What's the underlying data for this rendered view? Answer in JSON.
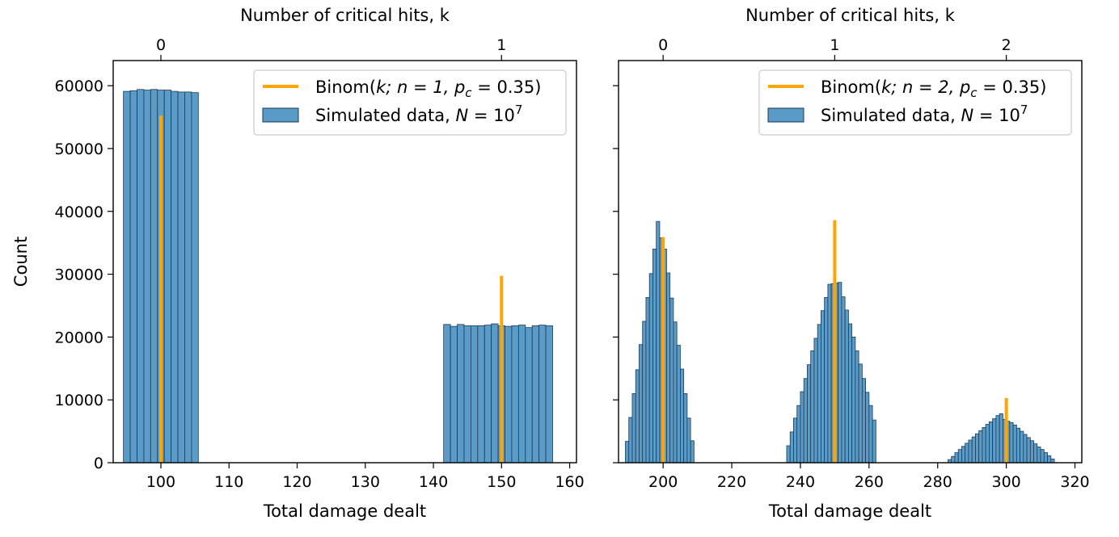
{
  "chart_data": [
    {
      "type": "bar",
      "xlabel": "Total damage dealt",
      "ylabel": "Count",
      "top_xlabel": "Number of critical hits, k",
      "xlim": [
        93,
        161
      ],
      "ylim": [
        0,
        64000
      ],
      "x_ticks": [
        100,
        110,
        120,
        130,
        140,
        150,
        160
      ],
      "y_ticks": [
        0,
        10000,
        20000,
        30000,
        40000,
        50000,
        60000
      ],
      "top_ticks": [
        {
          "label": "0",
          "x": 100
        },
        {
          "label": "1",
          "x": 150
        }
      ],
      "legend_position": "top-right",
      "series": [
        {
          "name_prefix": "Binom(",
          "name_math": "k; n = 1, p",
          "name_sub": "c",
          "name_suffix": " = 0.35)",
          "kind": "stem",
          "color": "#ffa500",
          "x": [
            100,
            150
          ],
          "values": [
            55250,
            29750
          ]
        },
        {
          "name_prefix": "Simulated data, ",
          "name_math": "N",
          "name_mid": " = 10",
          "name_sup": "7",
          "kind": "histogram",
          "color": "#5b9bc8",
          "edge_color": "#1a3a55",
          "bin_width": 1.0,
          "bins": [
            {
              "x0": 94.5,
              "v": 59100
            },
            {
              "x0": 95.5,
              "v": 59200
            },
            {
              "x0": 96.5,
              "v": 59400
            },
            {
              "x0": 97.5,
              "v": 59300
            },
            {
              "x0": 98.5,
              "v": 59400
            },
            {
              "x0": 99.5,
              "v": 59300
            },
            {
              "x0": 100.5,
              "v": 59300
            },
            {
              "x0": 101.5,
              "v": 59100
            },
            {
              "x0": 102.5,
              "v": 59000
            },
            {
              "x0": 103.5,
              "v": 59000
            },
            {
              "x0": 104.5,
              "v": 58900
            },
            {
              "x0": 141.5,
              "v": 22000
            },
            {
              "x0": 142.5,
              "v": 21700
            },
            {
              "x0": 143.5,
              "v": 22000
            },
            {
              "x0": 144.5,
              "v": 21800
            },
            {
              "x0": 145.5,
              "v": 21800
            },
            {
              "x0": 146.5,
              "v": 21800
            },
            {
              "x0": 147.5,
              "v": 21900
            },
            {
              "x0": 148.5,
              "v": 22100
            },
            {
              "x0": 149.5,
              "v": 21800
            },
            {
              "x0": 150.5,
              "v": 21700
            },
            {
              "x0": 151.5,
              "v": 21800
            },
            {
              "x0": 152.5,
              "v": 21900
            },
            {
              "x0": 153.5,
              "v": 21500
            },
            {
              "x0": 154.5,
              "v": 21800
            },
            {
              "x0": 155.5,
              "v": 21900
            },
            {
              "x0": 156.5,
              "v": 21800
            }
          ]
        }
      ]
    },
    {
      "type": "bar",
      "xlabel": "Total damage dealt",
      "ylabel": "",
      "top_xlabel": "Number of critical hits, k",
      "xlim": [
        187,
        322
      ],
      "ylim": [
        0,
        64000
      ],
      "x_ticks": [
        200,
        220,
        240,
        260,
        280,
        300,
        320
      ],
      "y_ticks": [
        0,
        10000,
        20000,
        30000,
        40000,
        50000,
        60000
      ],
      "top_ticks": [
        {
          "label": "0",
          "x": 200
        },
        {
          "label": "1",
          "x": 250
        },
        {
          "label": "2",
          "x": 300
        }
      ],
      "legend_position": "top-right",
      "series": [
        {
          "name_prefix": "Binom(",
          "name_math": "k; n = 2, p",
          "name_sub": "c",
          "name_suffix": " = 0.35)",
          "kind": "stem",
          "color": "#ffa500",
          "x": [
            200,
            250,
            300
          ],
          "values": [
            35900,
            38600,
            10300
          ]
        },
        {
          "name_prefix": "Simulated data, ",
          "name_math": "N",
          "name_mid": " = 10",
          "name_sup": "7",
          "kind": "histogram",
          "color": "#5b9bc8",
          "edge_color": "#1a3a55",
          "bin_width": 1.0,
          "bins": [
            {
              "x0": 189,
              "v": 3400
            },
            {
              "x0": 190,
              "v": 7200
            },
            {
              "x0": 191,
              "v": 11000
            },
            {
              "x0": 192,
              "v": 14800
            },
            {
              "x0": 193,
              "v": 18800
            },
            {
              "x0": 194,
              "v": 22500
            },
            {
              "x0": 195,
              "v": 26300
            },
            {
              "x0": 196,
              "v": 30100
            },
            {
              "x0": 197,
              "v": 34000
            },
            {
              "x0": 198,
              "v": 38400
            },
            {
              "x0": 199,
              "v": 35800
            },
            {
              "x0": 200,
              "v": 34000
            },
            {
              "x0": 201,
              "v": 30200
            },
            {
              "x0": 202,
              "v": 26200
            },
            {
              "x0": 203,
              "v": 22400
            },
            {
              "x0": 204,
              "v": 18700
            },
            {
              "x0": 205,
              "v": 14900
            },
            {
              "x0": 206,
              "v": 11000
            },
            {
              "x0": 207,
              "v": 7100
            },
            {
              "x0": 208,
              "v": 3500
            },
            {
              "x0": 236,
              "v": 2700
            },
            {
              "x0": 237,
              "v": 4900
            },
            {
              "x0": 238,
              "v": 7100
            },
            {
              "x0": 239,
              "v": 9100
            },
            {
              "x0": 240,
              "v": 11300
            },
            {
              "x0": 241,
              "v": 13400
            },
            {
              "x0": 242,
              "v": 15600
            },
            {
              "x0": 243,
              "v": 17800
            },
            {
              "x0": 244,
              "v": 19800
            },
            {
              "x0": 245,
              "v": 22000
            },
            {
              "x0": 246,
              "v": 24200
            },
            {
              "x0": 247,
              "v": 26300
            },
            {
              "x0": 248,
              "v": 28400
            },
            {
              "x0": 249,
              "v": 28500
            },
            {
              "x0": 250,
              "v": 28600
            },
            {
              "x0": 251,
              "v": 28700
            },
            {
              "x0": 252,
              "v": 26400
            },
            {
              "x0": 253,
              "v": 24300
            },
            {
              "x0": 254,
              "v": 22100
            },
            {
              "x0": 255,
              "v": 20000
            },
            {
              "x0": 256,
              "v": 17800
            },
            {
              "x0": 257,
              "v": 15700
            },
            {
              "x0": 258,
              "v": 13400
            },
            {
              "x0": 259,
              "v": 11200
            },
            {
              "x0": 260,
              "v": 9100
            },
            {
              "x0": 261,
              "v": 6800
            },
            {
              "x0": 283,
              "v": 500
            },
            {
              "x0": 284,
              "v": 1000
            },
            {
              "x0": 285,
              "v": 1600
            },
            {
              "x0": 286,
              "v": 2100
            },
            {
              "x0": 287,
              "v": 2600
            },
            {
              "x0": 288,
              "v": 3100
            },
            {
              "x0": 289,
              "v": 3600
            },
            {
              "x0": 290,
              "v": 4100
            },
            {
              "x0": 291,
              "v": 4600
            },
            {
              "x0": 292,
              "v": 5100
            },
            {
              "x0": 293,
              "v": 5600
            },
            {
              "x0": 294,
              "v": 6100
            },
            {
              "x0": 295,
              "v": 6500
            },
            {
              "x0": 296,
              "v": 7000
            },
            {
              "x0": 297,
              "v": 7500
            },
            {
              "x0": 298,
              "v": 7800
            },
            {
              "x0": 299,
              "v": 6900
            },
            {
              "x0": 300,
              "v": 6600
            },
            {
              "x0": 301,
              "v": 6400
            },
            {
              "x0": 302,
              "v": 6000
            },
            {
              "x0": 303,
              "v": 5500
            },
            {
              "x0": 304,
              "v": 5000
            },
            {
              "x0": 305,
              "v": 4500
            },
            {
              "x0": 306,
              "v": 4000
            },
            {
              "x0": 307,
              "v": 3500
            },
            {
              "x0": 308,
              "v": 3000
            },
            {
              "x0": 309,
              "v": 2500
            },
            {
              "x0": 310,
              "v": 2100
            },
            {
              "x0": 311,
              "v": 1600
            },
            {
              "x0": 312,
              "v": 1100
            },
            {
              "x0": 313,
              "v": 600
            }
          ]
        }
      ]
    }
  ]
}
